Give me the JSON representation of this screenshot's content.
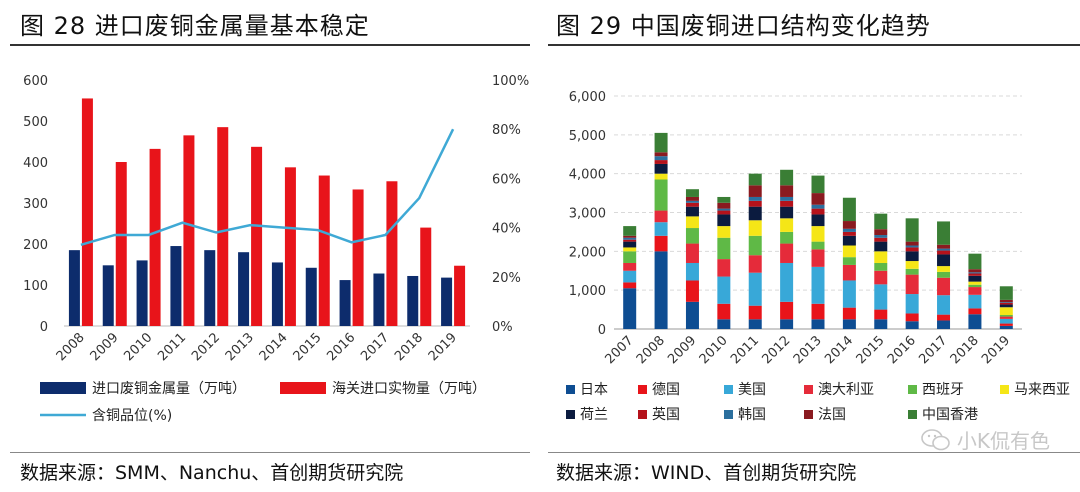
{
  "left": {
    "title": "图 28 进口废铜金属量基本稳定",
    "source": "数据来源：SMM、Nanchu、首创期货研究院"
  },
  "right": {
    "title": "图 29 中国废铜进口结构变化趋势",
    "source": "数据来源：WIND、首创期货研究院"
  },
  "watermark": {
    "text": "小K侃有色",
    "icon": "wechat-icon"
  },
  "chart_data": [
    {
      "type": "bar",
      "categories": [
        "2008",
        "2009",
        "2010",
        "2011",
        "2012",
        "2013",
        "2014",
        "2015",
        "2016",
        "2017",
        "2018",
        "2019"
      ],
      "series": [
        {
          "name": "进口废铜金属量（万吨）",
          "type": "bar",
          "axis": "left",
          "color": "#0d2c6c",
          "values": [
            185,
            148,
            160,
            195,
            185,
            180,
            155,
            142,
            112,
            128,
            122,
            118
          ]
        },
        {
          "name": "海关进口实物量（万吨）",
          "type": "bar",
          "axis": "left",
          "color": "#e8141a",
          "values": [
            555,
            400,
            432,
            465,
            485,
            437,
            387,
            367,
            333,
            353,
            240,
            147
          ]
        },
        {
          "name": "含铜品位(%)",
          "type": "line",
          "axis": "right",
          "color": "#3fa9d5",
          "values": [
            33,
            37,
            37,
            42,
            38,
            41,
            40,
            39,
            34,
            37,
            52,
            80
          ]
        }
      ],
      "y_left": {
        "min": 0,
        "max": 600,
        "ticks": [
          "0",
          "100",
          "200",
          "300",
          "400",
          "500",
          "600"
        ]
      },
      "y_right": {
        "min": 0,
        "max": 100,
        "ticks": [
          "0%",
          "20%",
          "40%",
          "60%",
          "80%",
          "100%"
        ]
      },
      "legend": "bottom"
    },
    {
      "type": "bar",
      "stacked": true,
      "categories": [
        "2007",
        "2008",
        "2009",
        "2010",
        "2011",
        "2012",
        "2013",
        "2014",
        "2015",
        "2016",
        "2017",
        "2018",
        "2019"
      ],
      "y": {
        "min": 0,
        "max": 6000,
        "ticks": [
          "0",
          "1,000",
          "2,000",
          "3,000",
          "4,000",
          "5,000",
          "6,000"
        ]
      },
      "legend": "bottom",
      "series": [
        {
          "name": "日本",
          "color": "#0e4d92",
          "values": [
            1050,
            2000,
            700,
            250,
            250,
            250,
            250,
            250,
            250,
            200,
            220,
            380,
            80
          ]
        },
        {
          "name": "德国",
          "color": "#e8141a",
          "values": [
            150,
            400,
            550,
            400,
            350,
            450,
            400,
            300,
            250,
            200,
            150,
            150,
            60
          ]
        },
        {
          "name": "美国",
          "color": "#38a8d8",
          "values": [
            300,
            350,
            450,
            700,
            850,
            1000,
            950,
            700,
            650,
            500,
            500,
            350,
            120
          ]
        },
        {
          "name": "澳大利亚",
          "color": "#e52b3a",
          "values": [
            200,
            300,
            500,
            450,
            450,
            500,
            450,
            400,
            350,
            500,
            450,
            200,
            60
          ]
        },
        {
          "name": "西班牙",
          "color": "#5fb946",
          "values": [
            300,
            800,
            400,
            550,
            500,
            300,
            200,
            200,
            200,
            150,
            150,
            60,
            40
          ]
        },
        {
          "name": "马来西亚",
          "color": "#f5e617",
          "values": [
            100,
            150,
            300,
            300,
            400,
            350,
            400,
            300,
            300,
            200,
            150,
            80,
            200
          ]
        },
        {
          "name": "荷兰",
          "color": "#0b1b3f",
          "values": [
            150,
            250,
            250,
            300,
            350,
            300,
            300,
            250,
            250,
            250,
            300,
            150,
            70
          ]
        },
        {
          "name": "英国",
          "color": "#b5121b",
          "values": [
            50,
            100,
            100,
            100,
            150,
            150,
            150,
            100,
            100,
            100,
            100,
            60,
            40
          ]
        },
        {
          "name": "韩国",
          "color": "#2b6f9e",
          "values": [
            50,
            100,
            50,
            50,
            100,
            100,
            100,
            80,
            70,
            50,
            50,
            30,
            20
          ]
        },
        {
          "name": "法国",
          "color": "#8a1a20",
          "values": [
            50,
            100,
            100,
            150,
            300,
            300,
            300,
            200,
            150,
            100,
            100,
            80,
            60
          ]
        },
        {
          "name": "中国香港",
          "color": "#3a7e35",
          "values": [
            250,
            500,
            200,
            150,
            300,
            400,
            450,
            600,
            400,
            600,
            600,
            400,
            350
          ]
        }
      ]
    }
  ]
}
